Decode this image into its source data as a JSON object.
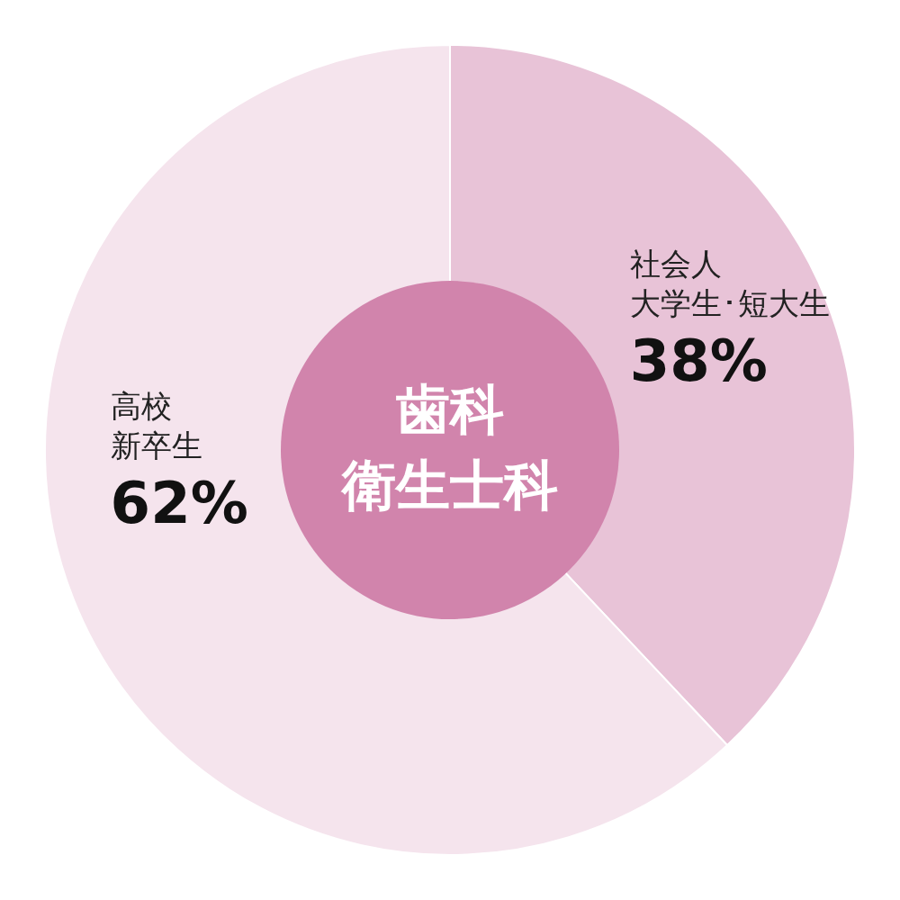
{
  "chart_data": {
    "type": "donut",
    "title": "歯科衛生士科",
    "categories": [
      "社会人大学生･短大生",
      "高校新卒生"
    ],
    "values": [
      38,
      62
    ],
    "colors": [
      "#e8c3d7",
      "#f5e4ed"
    ],
    "value_labels": [
      "38%",
      "62%"
    ]
  }
}
